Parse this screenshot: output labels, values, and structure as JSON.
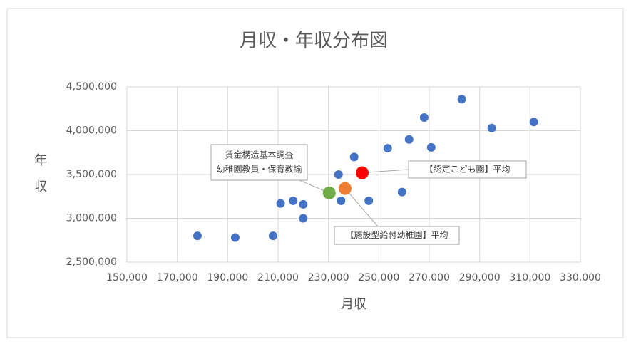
{
  "chart_data": {
    "type": "scatter",
    "title": "月収・年収分布図",
    "x_label": "月収",
    "y_label": [
      "年",
      "収"
    ],
    "x": [
      178000,
      193000,
      208000,
      211000,
      216000,
      220000,
      220000,
      234000,
      235000,
      236300,
      240200,
      246000,
      253500,
      259200,
      262000,
      268000,
      270800,
      282900,
      294800,
      311500
    ],
    "series": [
      {
        "color": "#4472c4",
        "values": [
          2800000,
          2780000,
          2800000,
          3170000,
          3200000,
          3160000,
          3000000,
          3500000,
          3200000,
          3360000,
          3700000,
          3200000,
          3800000,
          3300000,
          3900000,
          4150000,
          3810000,
          4360000,
          4030000,
          4100000
        ]
      }
    ],
    "highlights": [
      {
        "label": [
          "賃金構造基本調査",
          "幼稚園教員・保育教諭"
        ],
        "x": 230300,
        "y": 3290000,
        "color": "#70ad47"
      },
      {
        "label": [
          "【施設型給付幼稚園】平均"
        ],
        "x": 236600,
        "y": 3340000,
        "color": "#ed7d31"
      },
      {
        "label": [
          "【認定こども園】平均"
        ],
        "x": 243400,
        "y": 3520000,
        "color": "#ff0000"
      }
    ],
    "xlim": [
      150000,
      330000
    ],
    "xticks": [
      {
        "value": 150000,
        "label": "150,000"
      },
      {
        "value": 170000,
        "label": "170,000"
      },
      {
        "value": 190000,
        "label": "190,000"
      },
      {
        "value": 210000,
        "label": "210,000"
      },
      {
        "value": 230000,
        "label": "230,000"
      },
      {
        "value": 250000,
        "label": "250,000"
      },
      {
        "value": 270000,
        "label": "270,000"
      },
      {
        "value": 290000,
        "label": "290,000"
      },
      {
        "value": 310000,
        "label": "310,000"
      },
      {
        "value": 330000,
        "label": "330,000"
      }
    ],
    "ylim": [
      2500000,
      4500000
    ],
    "yticks": [
      {
        "value": 2500000,
        "label": "2,500,000"
      },
      {
        "value": 3000000,
        "label": "3,000,000"
      },
      {
        "value": 3500000,
        "label": "3,500,000"
      },
      {
        "value": 4000000,
        "label": "4,000,000"
      },
      {
        "value": 4500000,
        "label": "4,500,000"
      }
    ],
    "grid": true
  }
}
